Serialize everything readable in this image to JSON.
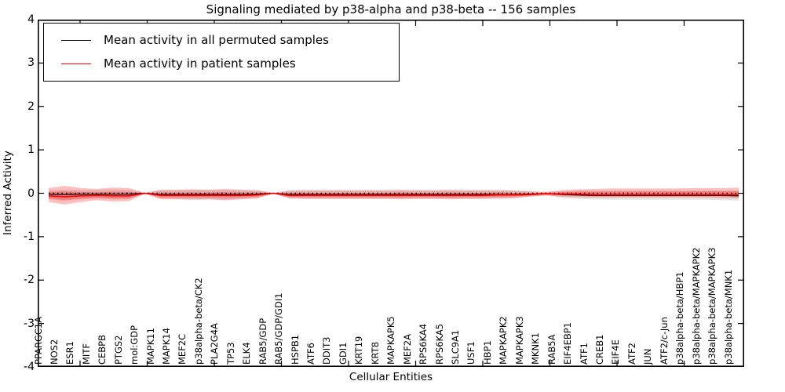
{
  "title": "Signaling mediated by p38-alpha and p38-beta -- 156 samples",
  "axes": {
    "xlabel": "Cellular Entities",
    "ylabel": "Inferred Activity",
    "ytick_labels": [
      "4",
      "3",
      "2",
      "1",
      "0",
      "-1",
      "-2",
      "-3",
      "-4"
    ]
  },
  "legend": {
    "items": [
      {
        "label": "Mean activity in all permuted samples",
        "color": "#000000"
      },
      {
        "label": "Mean activity in patient samples",
        "color": "#ff0000"
      }
    ]
  },
  "chart_data": {
    "type": "line",
    "title": "Signaling mediated by p38-alpha and p38-beta -- 156 samples",
    "xlabel": "Cellular Entities",
    "ylabel": "Inferred Activity",
    "ylim": [
      -4,
      4
    ],
    "yticks": [
      4,
      3,
      2,
      1,
      0,
      -1,
      -2,
      -3,
      -4
    ],
    "grid": false,
    "legend_position": "upper left",
    "zero_reference_line": {
      "value": 0,
      "style": "dotted",
      "color": "#000000"
    },
    "categories": [
      "PPARGC1A",
      "NOS2",
      "ESR1",
      "MITF",
      "CEBPB",
      "PTGS2",
      "mol:GDP",
      "MAPK11",
      "MAPK14",
      "MEF2C",
      "p38alpha-beta/CK2",
      "PLA2G4A",
      "TP53",
      "ELK4",
      "RAB5/GDP",
      "RAB5/GDP/GDI1",
      "HSPB1",
      "ATF6",
      "DDIT3",
      "GDI1",
      "KRT19",
      "KRT8",
      "MAPKAPK5",
      "MEF2A",
      "RPS6KA4",
      "RPS6KA5",
      "SLC9A1",
      "USF1",
      "HBP1",
      "MAPKAPK2",
      "MAPKAPK3",
      "MKNK1",
      "RAB5A",
      "EIF4EBP1",
      "ATF1",
      "CREB1",
      "EIF4E",
      "ATF2",
      "JUN",
      "ATF2/c-Jun",
      "p38alpha-beta/HBP1",
      "p38alpha-beta/MAPKAPK2",
      "p38alpha-beta/MAPKAPK3",
      "p38alpha-beta/MNK1"
    ],
    "series": [
      {
        "name": "Mean activity in all permuted samples",
        "color": "#000000",
        "band_color": "rgba(0,0,0,0.10)",
        "values": [
          -0.02,
          -0.03,
          -0.02,
          -0.02,
          -0.02,
          -0.02,
          0.0,
          -0.03,
          -0.03,
          -0.03,
          -0.03,
          -0.03,
          -0.03,
          -0.02,
          0.0,
          -0.03,
          -0.03,
          -0.03,
          -0.03,
          -0.03,
          -0.03,
          -0.03,
          -0.03,
          -0.03,
          -0.03,
          -0.03,
          -0.03,
          -0.03,
          -0.03,
          -0.03,
          -0.02,
          -0.01,
          -0.03,
          -0.04,
          -0.05,
          -0.05,
          -0.05,
          -0.05,
          -0.05,
          -0.05,
          -0.05,
          -0.05,
          -0.05,
          -0.06
        ],
        "band_hi": [
          0.07,
          0.08,
          0.07,
          0.07,
          0.08,
          0.08,
          0.01,
          0.07,
          0.07,
          0.08,
          0.08,
          0.08,
          0.07,
          0.06,
          0.01,
          0.06,
          0.06,
          0.06,
          0.06,
          0.06,
          0.06,
          0.06,
          0.06,
          0.06,
          0.06,
          0.06,
          0.06,
          0.06,
          0.06,
          0.06,
          0.04,
          0.03,
          0.05,
          0.06,
          0.06,
          0.06,
          0.06,
          0.06,
          0.06,
          0.06,
          0.06,
          0.06,
          0.06,
          0.06
        ],
        "band_lo": [
          -0.12,
          -0.15,
          -0.13,
          -0.12,
          -0.14,
          -0.13,
          -0.01,
          -0.12,
          -0.13,
          -0.14,
          -0.14,
          -0.15,
          -0.13,
          -0.11,
          -0.01,
          -0.11,
          -0.12,
          -0.12,
          -0.12,
          -0.12,
          -0.12,
          -0.12,
          -0.12,
          -0.12,
          -0.12,
          -0.12,
          -0.12,
          -0.12,
          -0.12,
          -0.12,
          -0.07,
          -0.05,
          -0.11,
          -0.13,
          -0.14,
          -0.15,
          -0.15,
          -0.15,
          -0.15,
          -0.15,
          -0.15,
          -0.15,
          -0.16,
          -0.17
        ]
      },
      {
        "name": "Mean activity in patient samples",
        "color": "#ff0000",
        "band_color": "rgba(255,0,0,0.25)",
        "values": [
          -0.06,
          -0.08,
          -0.06,
          -0.05,
          -0.06,
          -0.06,
          0.0,
          -0.05,
          -0.05,
          -0.05,
          -0.05,
          -0.05,
          -0.05,
          -0.04,
          0.0,
          -0.05,
          -0.05,
          -0.05,
          -0.05,
          -0.05,
          -0.05,
          -0.05,
          -0.05,
          -0.05,
          -0.05,
          -0.05,
          -0.05,
          -0.05,
          -0.04,
          -0.04,
          -0.03,
          -0.01,
          -0.02,
          -0.02,
          -0.03,
          -0.03,
          -0.03,
          -0.03,
          -0.03,
          -0.03,
          -0.03,
          -0.03,
          -0.03,
          -0.03
        ],
        "band_hi": [
          0.12,
          0.17,
          0.12,
          0.1,
          0.13,
          0.12,
          0.01,
          0.08,
          0.08,
          0.09,
          0.08,
          0.1,
          0.08,
          0.07,
          0.01,
          0.06,
          0.07,
          0.07,
          0.07,
          0.07,
          0.07,
          0.07,
          0.08,
          0.07,
          0.07,
          0.08,
          0.07,
          0.07,
          0.07,
          0.06,
          0.04,
          0.03,
          0.07,
          0.09,
          0.1,
          0.11,
          0.11,
          0.11,
          0.11,
          0.11,
          0.12,
          0.12,
          0.12,
          0.13
        ],
        "band_lo": [
          -0.2,
          -0.26,
          -0.2,
          -0.16,
          -0.19,
          -0.18,
          -0.01,
          -0.14,
          -0.14,
          -0.15,
          -0.14,
          -0.16,
          -0.14,
          -0.12,
          -0.01,
          -0.12,
          -0.13,
          -0.13,
          -0.13,
          -0.13,
          -0.13,
          -0.13,
          -0.14,
          -0.13,
          -0.13,
          -0.14,
          -0.13,
          -0.13,
          -0.12,
          -0.11,
          -0.08,
          -0.05,
          -0.08,
          -0.09,
          -0.1,
          -0.1,
          -0.1,
          -0.1,
          -0.1,
          -0.1,
          -0.1,
          -0.1,
          -0.11,
          -0.12
        ]
      }
    ]
  }
}
